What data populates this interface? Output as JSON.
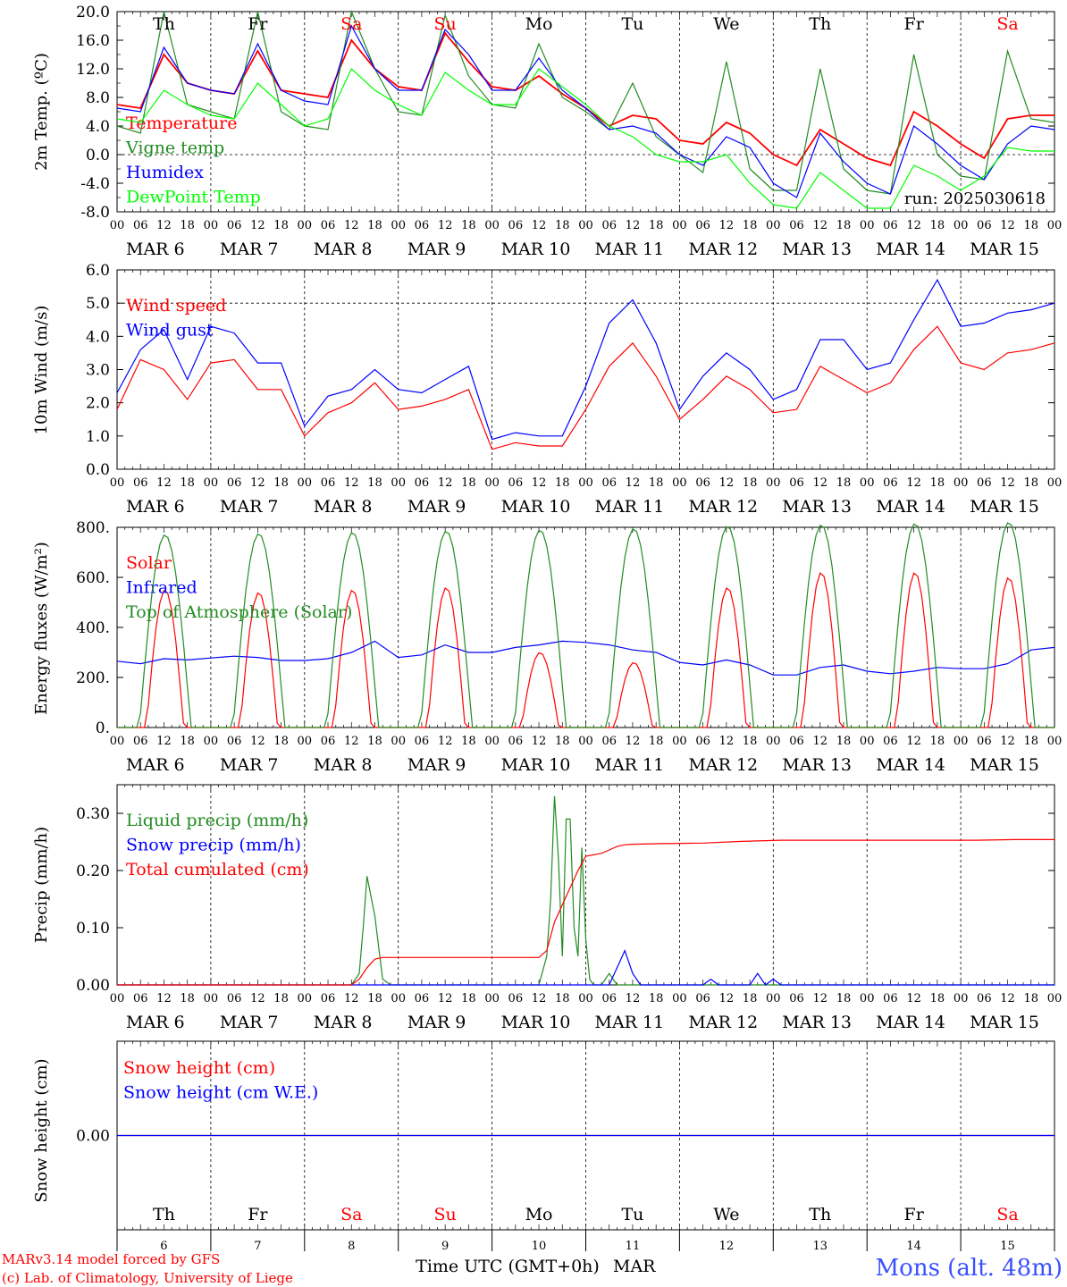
{
  "chart_data": [
    {
      "type": "line",
      "ylabel": "2m Temp. (ºC)",
      "ylim": [
        -8,
        20
      ],
      "yticks": [
        -8,
        -4,
        0,
        4,
        8,
        12,
        16,
        20
      ],
      "ytick_labels": [
        "-8.0",
        "-4.0",
        "0.0",
        "4.0",
        "8.0",
        "12.0",
        "16.0",
        "20.0"
      ],
      "hline": 0,
      "annotation": "run: 2025030618",
      "series": [
        {
          "name": "Temperature",
          "color": "#ff0000",
          "x": [
            0,
            6,
            12,
            18,
            24,
            30,
            36,
            42,
            48,
            54,
            60,
            66,
            72,
            78,
            84,
            90,
            96,
            102,
            108,
            114,
            120,
            126,
            132,
            138,
            144,
            150,
            156,
            162,
            168,
            174,
            180,
            186,
            192,
            198,
            204,
            210,
            216,
            222,
            228,
            234,
            240
          ],
          "y": [
            7,
            6.5,
            14,
            10,
            9,
            8.5,
            14.5,
            9,
            8.5,
            8,
            16,
            12,
            9.5,
            9,
            17,
            13,
            9.5,
            9,
            11,
            8.5,
            6.5,
            4,
            5.5,
            5,
            2,
            1.5,
            4.5,
            3,
            0,
            -1.5,
            3.5,
            1.5,
            -0.5,
            -1.5,
            6,
            4,
            1.5,
            -0.5,
            5,
            5.5,
            5.5
          ]
        },
        {
          "name": "Vigne temp",
          "color": "#228b22",
          "x": [
            0,
            6,
            12,
            18,
            24,
            30,
            36,
            42,
            48,
            54,
            60,
            66,
            72,
            78,
            84,
            90,
            96,
            102,
            108,
            114,
            120,
            126,
            132,
            138,
            144,
            150,
            156,
            162,
            168,
            174,
            180,
            186,
            192,
            198,
            204,
            210,
            216,
            222,
            228,
            234,
            240
          ],
          "y": [
            4,
            3,
            20,
            7,
            6,
            5,
            20,
            6,
            4,
            3.5,
            20,
            12,
            6,
            5.5,
            19.5,
            11,
            7,
            6.5,
            15.5,
            8,
            6,
            3.5,
            10,
            2.5,
            0,
            -2.5,
            13,
            -2,
            -5,
            -5,
            12,
            -2,
            -5,
            -5.5,
            14,
            0,
            -3,
            -3.5,
            14.5,
            5,
            4.5
          ]
        },
        {
          "name": "Humidex",
          "color": "#0000ff",
          "x": [
            0,
            6,
            12,
            18,
            24,
            30,
            36,
            42,
            48,
            54,
            60,
            66,
            72,
            78,
            84,
            90,
            96,
            102,
            108,
            114,
            120,
            126,
            132,
            138,
            144,
            150,
            156,
            162,
            168,
            174,
            180,
            186,
            192,
            198,
            204,
            210,
            216,
            222,
            228,
            234,
            240
          ],
          "y": [
            6.5,
            6,
            15,
            10,
            9,
            8.5,
            15.5,
            9,
            7.5,
            7,
            18,
            12,
            9,
            9,
            17.5,
            14,
            9,
            9,
            13.5,
            9,
            6.5,
            3.5,
            4,
            3,
            0,
            -1.5,
            2.5,
            1,
            -4,
            -6,
            3,
            -1,
            -4,
            -5.5,
            4,
            1.5,
            -1.5,
            -3.5,
            1.5,
            4,
            3.5
          ]
        },
        {
          "name": "DewPoint Temp",
          "color": "#00ff00",
          "x": [
            0,
            6,
            12,
            18,
            24,
            30,
            36,
            42,
            48,
            54,
            60,
            66,
            72,
            78,
            84,
            90,
            96,
            102,
            108,
            114,
            120,
            126,
            132,
            138,
            144,
            150,
            156,
            162,
            168,
            174,
            180,
            186,
            192,
            198,
            204,
            210,
            216,
            222,
            228,
            234,
            240
          ],
          "y": [
            5,
            4.5,
            9,
            7,
            5.5,
            5,
            10,
            7,
            4,
            5,
            12,
            9,
            7,
            5.5,
            11.5,
            9,
            7,
            7,
            12,
            9.5,
            7,
            4,
            2.5,
            0,
            -1,
            -1,
            0,
            -4,
            -7,
            -7.5,
            -2.5,
            -5,
            -7.5,
            -7.5,
            -1.5,
            -3,
            -5,
            -3,
            1,
            0.5,
            0.5
          ]
        }
      ]
    },
    {
      "type": "line",
      "ylabel": "10m Wind (m/s)",
      "ylim": [
        0,
        6
      ],
      "yticks": [
        0,
        1,
        2,
        3,
        4,
        5,
        6
      ],
      "ytick_labels": [
        "0.0",
        "1.0",
        "2.0",
        "3.0",
        "4.0",
        "5.0",
        "6.0"
      ],
      "hline": 5,
      "series": [
        {
          "name": "Wind speed",
          "color": "#ff0000",
          "x": [
            0,
            6,
            12,
            18,
            24,
            30,
            36,
            42,
            48,
            54,
            60,
            66,
            72,
            78,
            84,
            90,
            96,
            102,
            108,
            114,
            120,
            126,
            132,
            138,
            144,
            150,
            156,
            162,
            168,
            174,
            180,
            186,
            192,
            198,
            204,
            210,
            216,
            222,
            228,
            234,
            240
          ],
          "y": [
            1.8,
            3.3,
            3,
            2.1,
            3.2,
            3.3,
            2.4,
            2.4,
            1,
            1.7,
            2,
            2.6,
            1.8,
            1.9,
            2.1,
            2.4,
            0.6,
            0.8,
            0.7,
            0.7,
            1.8,
            3.1,
            3.8,
            2.8,
            1.5,
            2.1,
            2.8,
            2.4,
            1.7,
            1.8,
            3.1,
            2.7,
            2.3,
            2.6,
            3.6,
            4.3,
            3.2,
            3,
            3.5,
            3.6,
            3.8
          ]
        },
        {
          "name": "Wind gust",
          "color": "#0000ff",
          "x": [
            0,
            6,
            12,
            18,
            24,
            30,
            36,
            42,
            48,
            54,
            60,
            66,
            72,
            78,
            84,
            90,
            96,
            102,
            108,
            114,
            120,
            126,
            132,
            138,
            144,
            150,
            156,
            162,
            168,
            174,
            180,
            186,
            192,
            198,
            204,
            210,
            216,
            222,
            228,
            234,
            240
          ],
          "y": [
            2.3,
            3.6,
            4.2,
            2.7,
            4.3,
            4.1,
            3.2,
            3.2,
            1.3,
            2.2,
            2.4,
            3,
            2.4,
            2.3,
            2.7,
            3.1,
            0.9,
            1.1,
            1,
            1,
            2.5,
            4.4,
            5.1,
            3.8,
            1.8,
            2.8,
            3.5,
            3,
            2.1,
            2.4,
            3.9,
            3.9,
            3,
            3.2,
            4.5,
            5.7,
            4.3,
            4.4,
            4.7,
            4.8,
            5
          ]
        }
      ]
    },
    {
      "type": "line",
      "ylabel": "Energy fluxes (W/m²)",
      "ylim": [
        0,
        800
      ],
      "yticks": [
        0,
        200,
        400,
        600,
        800
      ],
      "ytick_labels": [
        "0.",
        "200.",
        "400.",
        "600.",
        "800."
      ],
      "series": [
        {
          "name": "Solar",
          "color": "#ff0000",
          "peaks": [
            550,
            540,
            550,
            560,
            300,
            260,
            560,
            620,
            620,
            600
          ]
        },
        {
          "name": "Infrared",
          "color": "#0000ff",
          "x": [
            0,
            6,
            12,
            18,
            24,
            30,
            36,
            42,
            48,
            54,
            60,
            66,
            72,
            78,
            84,
            90,
            96,
            102,
            108,
            114,
            120,
            126,
            132,
            138,
            144,
            150,
            156,
            162,
            168,
            174,
            180,
            186,
            192,
            198,
            204,
            210,
            216,
            222,
            228,
            234,
            240
          ],
          "y": [
            265,
            255,
            275,
            270,
            278,
            285,
            280,
            268,
            268,
            275,
            300,
            345,
            280,
            290,
            330,
            300,
            300,
            320,
            330,
            345,
            340,
            330,
            310,
            300,
            260,
            250,
            270,
            250,
            210,
            210,
            240,
            250,
            225,
            215,
            225,
            240,
            235,
            235,
            255,
            310,
            320
          ]
        },
        {
          "name": "Top of Atmosphere (Solar)",
          "color": "#228b22",
          "peaks": [
            770,
            775,
            780,
            785,
            790,
            795,
            805,
            810,
            815,
            820
          ]
        }
      ]
    },
    {
      "type": "line",
      "ylabel": "Precip (mm/h)",
      "ylim": [
        0,
        0.35
      ],
      "yticks": [
        0,
        0.1,
        0.2,
        0.3
      ],
      "ytick_labels": [
        "0.00",
        "0.10",
        "0.20",
        "0.30"
      ],
      "series": [
        {
          "name": "Liquid precip (mm/h)",
          "color": "#228b22",
          "x": [
            0,
            60,
            62,
            63,
            64,
            66,
            68,
            70,
            96,
            108,
            110,
            111,
            112,
            113,
            114,
            115,
            116,
            117,
            118,
            119,
            120,
            121,
            122,
            124,
            126,
            128,
            130,
            240
          ],
          "y": [
            0,
            0,
            0.02,
            0.1,
            0.19,
            0.12,
            0.01,
            0,
            0,
            0,
            0.05,
            0.15,
            0.33,
            0.22,
            0.05,
            0.29,
            0.29,
            0.1,
            0.05,
            0.24,
            0.08,
            0.01,
            0,
            0,
            0.02,
            0,
            0,
            0
          ]
        },
        {
          "name": "Snow precip (mm/h)",
          "color": "#0000ff",
          "x": [
            0,
            126,
            128,
            130,
            132,
            134,
            136,
            138,
            140,
            150,
            152,
            154,
            156,
            162,
            164,
            166,
            168,
            170,
            172,
            174,
            240
          ],
          "y": [
            0,
            0,
            0.03,
            0.06,
            0.02,
            0,
            0,
            0,
            0,
            0,
            0.01,
            0,
            0,
            0,
            0.02,
            0,
            0.01,
            0,
            0,
            0,
            0
          ]
        },
        {
          "name": "Total cumulated (cm)",
          "color": "#ff0000",
          "x": [
            0,
            60,
            62,
            64,
            66,
            68,
            108,
            110,
            112,
            114,
            116,
            118,
            120,
            124,
            126,
            128,
            130,
            132,
            140,
            150,
            160,
            170,
            180,
            190,
            200,
            210,
            220,
            230,
            240
          ],
          "y": [
            0,
            0,
            0.01,
            0.03,
            0.045,
            0.048,
            0.048,
            0.06,
            0.11,
            0.14,
            0.17,
            0.2,
            0.225,
            0.23,
            0.236,
            0.242,
            0.245,
            0.246,
            0.247,
            0.248,
            0.251,
            0.253,
            0.253,
            0.253,
            0.253,
            0.253,
            0.253,
            0.254,
            0.254
          ]
        }
      ]
    },
    {
      "type": "line",
      "ylabel": "Snow height (cm)",
      "ylim": [
        -1,
        1
      ],
      "yticks": [
        0
      ],
      "ytick_labels": [
        "0.00"
      ],
      "series": [
        {
          "name": "Snow height (cm)",
          "color": "#ff0000",
          "x": [
            0,
            240
          ],
          "y": [
            0,
            0
          ]
        },
        {
          "name": "Snow height (cm W.E.)",
          "color": "#0000ff",
          "x": [
            0,
            240
          ],
          "y": [
            0,
            0
          ]
        }
      ]
    }
  ],
  "time_axis": {
    "hour_labels": [
      "00",
      "06",
      "12",
      "18"
    ],
    "end_label": "00",
    "date_labels": [
      "MAR  6",
      "MAR  7",
      "MAR  8",
      "MAR  9",
      "MAR 10",
      "MAR 11",
      "MAR 12",
      "MAR 13",
      "MAR 14",
      "MAR 15"
    ],
    "weekdays": [
      "Th",
      "Fr",
      "Sa",
      "Su",
      "Mo",
      "Tu",
      "We",
      "Th",
      "Fr",
      "Sa"
    ],
    "weekday_colors": [
      "#000000",
      "#000000",
      "#ff0000",
      "#ff0000",
      "#000000",
      "#000000",
      "#000000",
      "#000000",
      "#000000",
      "#ff0000"
    ],
    "day_numbers": [
      "6",
      "7",
      "8",
      "9",
      "10",
      "11",
      "12",
      "13",
      "14",
      "15"
    ],
    "xlabel": "Time UTC (GMT+0h)",
    "month": "MAR"
  },
  "footer": {
    "credit_line1": "MARv3.14 model forced by GFS",
    "credit_line2": "(c) Lab. of Climatology, University of Liege",
    "location": "Mons (alt. 48m)"
  },
  "colors": {
    "red": "#ff0000",
    "green": "#228b22",
    "light_green": "#00ff00",
    "blue": "#0000ff",
    "location_blue": "#3b50ff"
  }
}
